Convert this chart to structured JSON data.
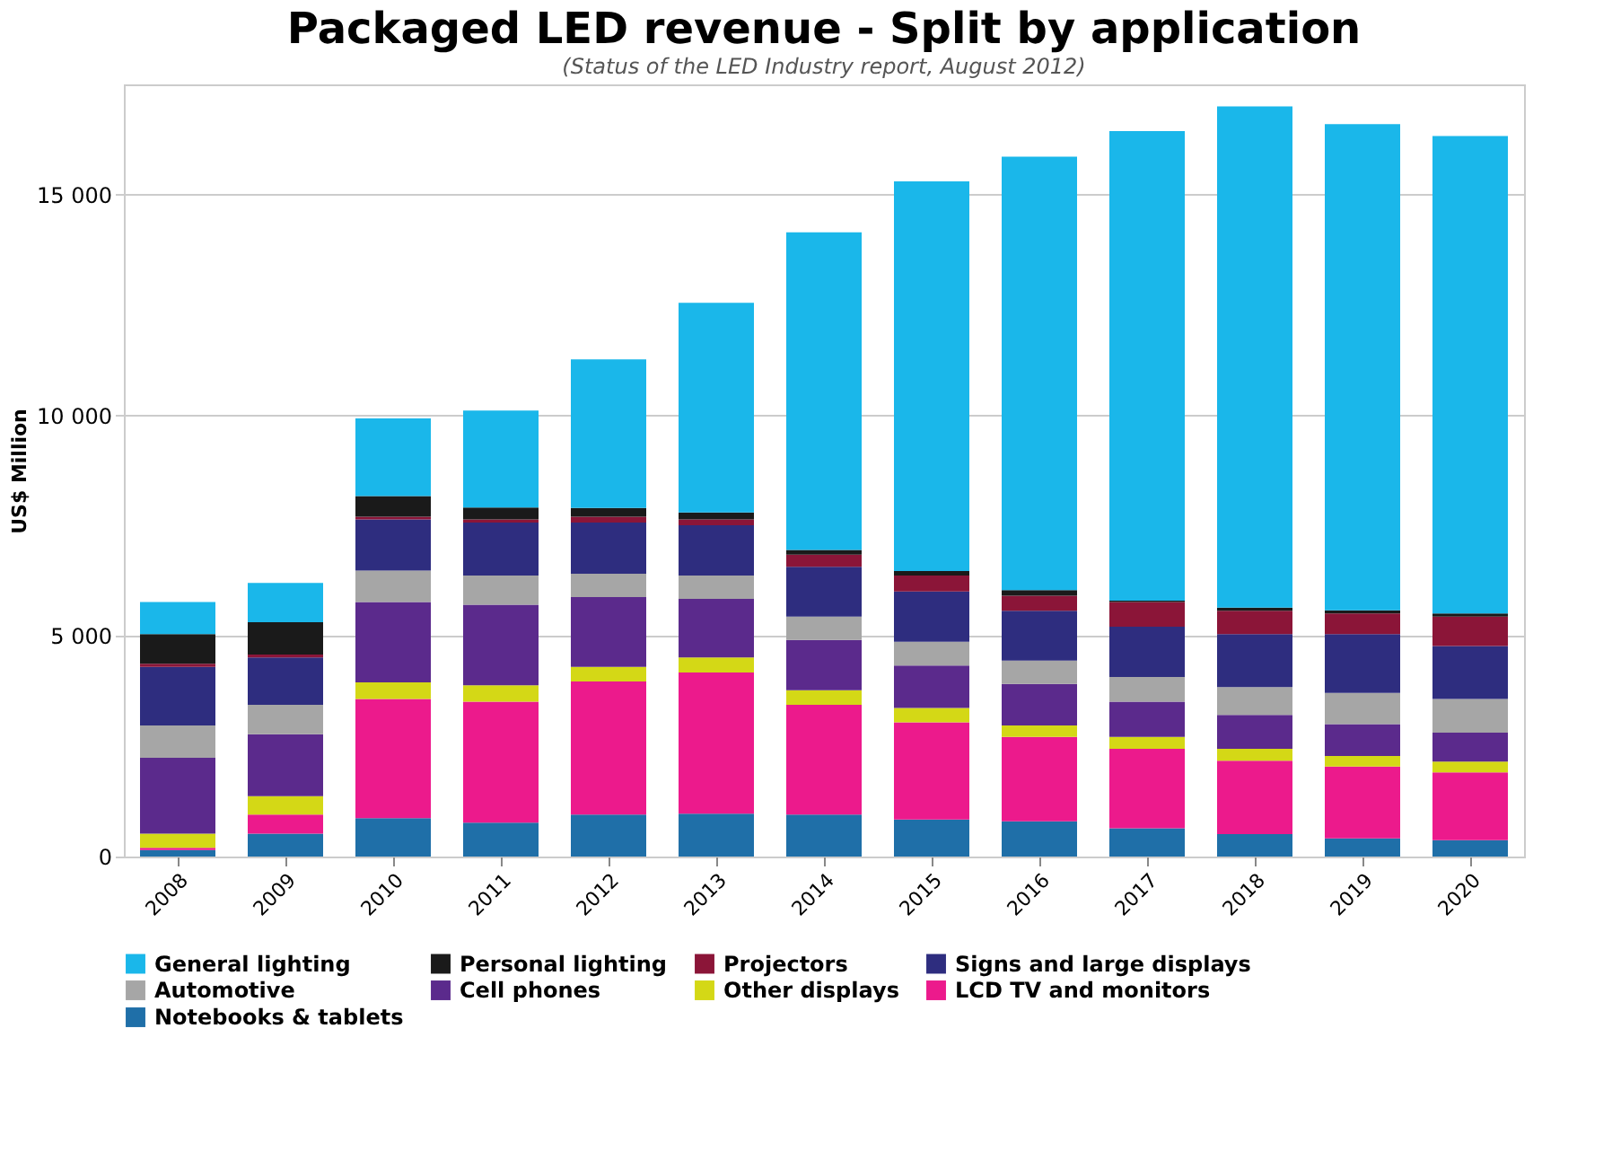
{
  "chart_data": {
    "type": "bar",
    "stacked": true,
    "title": "Packaged LED revenue - Split by application",
    "subtitle": "(Status of the LED Industry report, August 2012)",
    "ylabel": "US$ Million",
    "categories": [
      "2008",
      "2009",
      "2010",
      "2011",
      "2012",
      "2013",
      "2014",
      "2015",
      "2016",
      "2017",
      "2018",
      "2019",
      "2020"
    ],
    "series": [
      {
        "name": "Notebooks & tablets",
        "color": "#1f6fa8",
        "values": [
          150,
          520,
          870,
          770,
          950,
          970,
          950,
          840,
          800,
          640,
          510,
          410,
          370
        ]
      },
      {
        "name": "LCD TV and monitors",
        "color": "#ec1a8c",
        "values": [
          50,
          430,
          2700,
          2740,
          3020,
          3200,
          2490,
          2200,
          1910,
          1800,
          1660,
          1630,
          1540
        ]
      },
      {
        "name": "Other displays",
        "color": "#d4d816",
        "values": [
          320,
          420,
          380,
          370,
          330,
          340,
          330,
          330,
          260,
          270,
          270,
          240,
          240
        ]
      },
      {
        "name": "Cell phones",
        "color": "#5b2a8c",
        "values": [
          1720,
          1400,
          1820,
          1830,
          1580,
          1330,
          1140,
          960,
          940,
          800,
          770,
          720,
          660
        ]
      },
      {
        "name": "Automotive",
        "color": "#a6a6a6",
        "values": [
          730,
          670,
          710,
          660,
          530,
          530,
          530,
          540,
          530,
          560,
          630,
          710,
          760
        ]
      },
      {
        "name": "Signs and large displays",
        "color": "#2e2d7f",
        "values": [
          1330,
          1070,
          1160,
          1200,
          1160,
          1140,
          1130,
          1140,
          1130,
          1140,
          1200,
          1330,
          1200
        ]
      },
      {
        "name": "Projectors",
        "color": "#8b1538",
        "values": [
          70,
          70,
          60,
          70,
          130,
          130,
          270,
          360,
          340,
          560,
          530,
          470,
          670
        ]
      },
      {
        "name": "Personal lighting",
        "color": "#1a1a1a",
        "values": [
          670,
          730,
          470,
          270,
          200,
          160,
          110,
          100,
          130,
          30,
          70,
          70,
          70
        ]
      },
      {
        "name": "General lighting",
        "color": "#1ab7ea",
        "values": [
          730,
          890,
          1760,
          2200,
          3370,
          4750,
          7200,
          8830,
          9820,
          10640,
          11360,
          11020,
          10820
        ]
      }
    ],
    "ylim": [
      0,
      17500
    ],
    "yticks": [
      0,
      {
        "value": 5000,
        "label": "5 000"
      },
      {
        "value": 10000,
        "label": "10 000"
      },
      {
        "value": 15000,
        "label": "15 000"
      }
    ],
    "grid": "y",
    "legend": "bottom"
  }
}
